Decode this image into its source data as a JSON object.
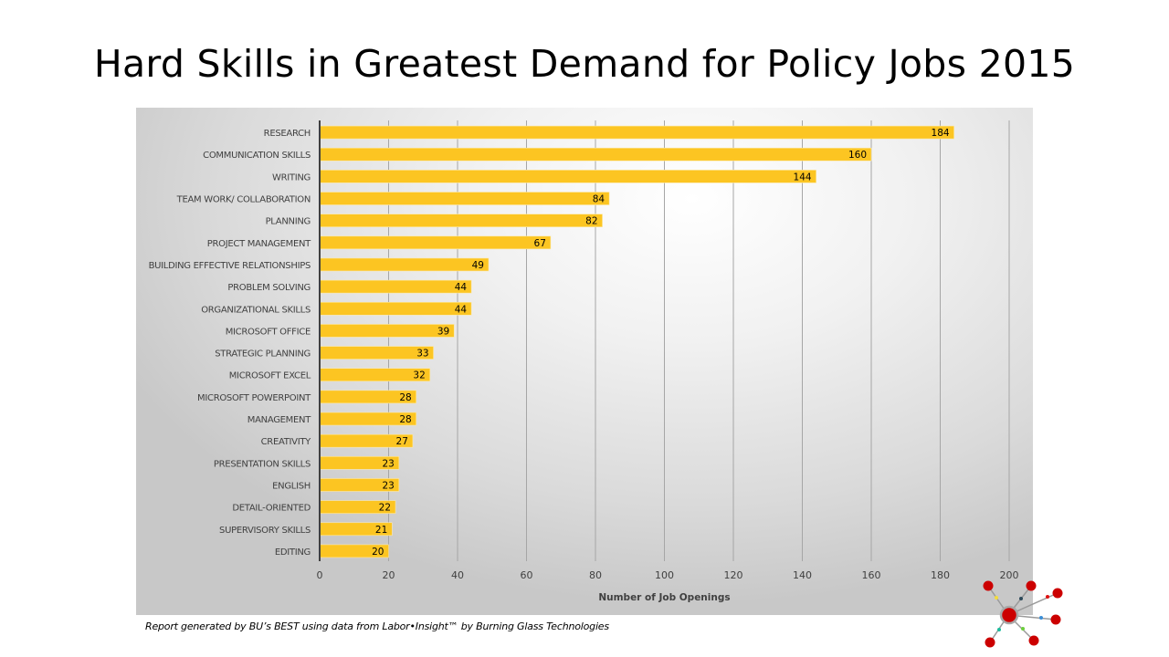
{
  "title": "Hard Skills in Greatest Demand for Policy Jobs 2015",
  "footer": "Report generated by BU’s BEST using data from Labor•Insight™ by Burning Glass Technologies",
  "logo": {
    "icon": "network-hub-logo-icon"
  },
  "colors": {
    "bar": "#FCC522",
    "axis": "#404040",
    "grid": "#a6a6a6",
    "text": "#404040"
  },
  "chart_data": {
    "type": "bar",
    "orientation": "horizontal",
    "title": "Hard Skills in Greatest Demand for Policy Jobs 2015",
    "xlabel": "Number of Job Openings",
    "ylabel": "",
    "xlim": [
      0,
      200
    ],
    "xticks": [
      0,
      20,
      40,
      60,
      80,
      100,
      120,
      140,
      160,
      180,
      200
    ],
    "grid": true,
    "legend": "none",
    "categories": [
      "RESEARCH",
      "COMMUNICATION SKILLS",
      "WRITING",
      "TEAM WORK/ COLLABORATION",
      "PLANNING",
      "PROJECT MANAGEMENT",
      "BUILDING EFFECTIVE RELATIONSHIPS",
      "PROBLEM SOLVING",
      "ORGANIZATIONAL SKILLS",
      "MICROSOFT OFFICE",
      "STRATEGIC PLANNING",
      "MICROSOFT EXCEL",
      "MICROSOFT POWERPOINT",
      "MANAGEMENT",
      "CREATIVITY",
      "PRESENTATION SKILLS",
      "ENGLISH",
      "DETAIL-ORIENTED",
      "SUPERVISORY SKILLS",
      "EDITING"
    ],
    "values": [
      184,
      160,
      144,
      84,
      82,
      67,
      49,
      44,
      44,
      39,
      33,
      32,
      28,
      28,
      27,
      23,
      23,
      22,
      21,
      20
    ]
  }
}
